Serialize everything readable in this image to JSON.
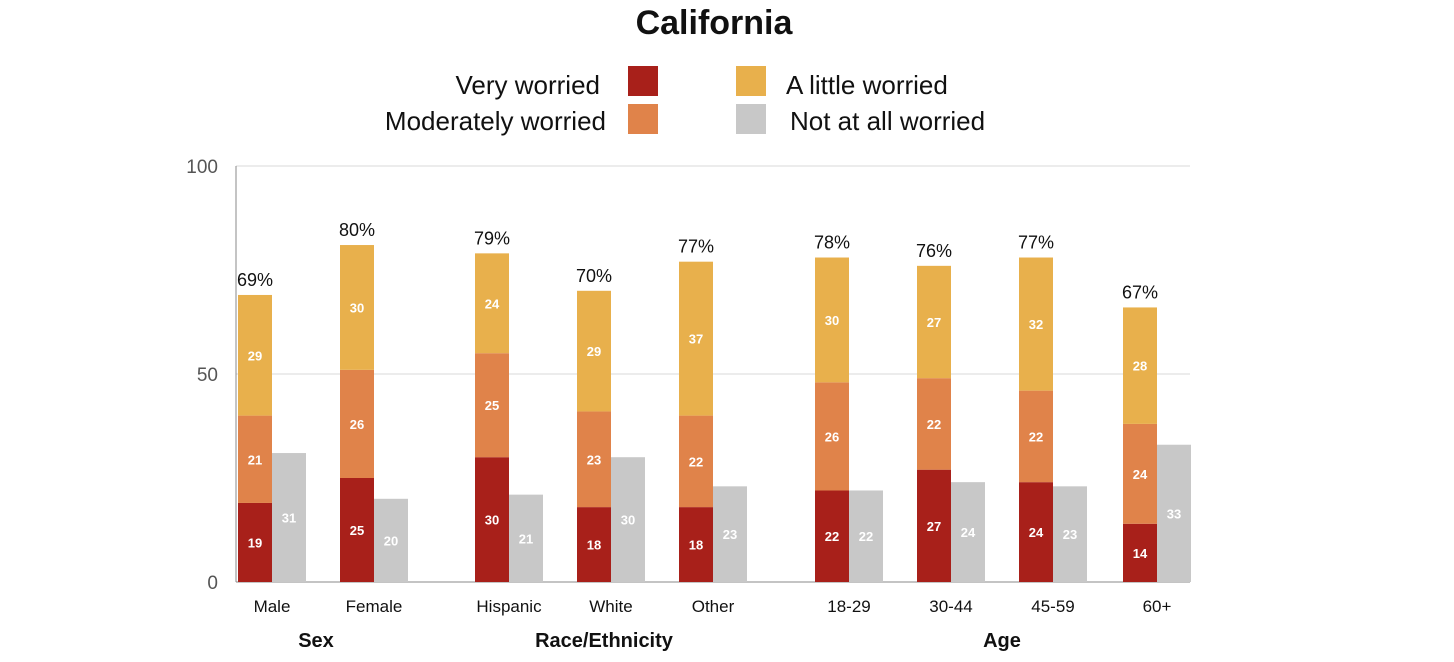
{
  "chart_data": {
    "type": "bar",
    "title": "California",
    "ylim": [
      0,
      100
    ],
    "yticks": [
      0,
      50,
      100
    ],
    "grid": true,
    "legend_placement": "top",
    "categories": [
      "Male",
      "Female",
      "Hispanic",
      "White",
      "Other",
      "18-29",
      "30-44",
      "45-59",
      "60+"
    ],
    "groups": [
      {
        "label": "Sex",
        "categories": [
          "Male",
          "Female"
        ]
      },
      {
        "label": "Race/Ethnicity",
        "categories": [
          "Hispanic",
          "White",
          "Other"
        ]
      },
      {
        "label": "Age",
        "categories": [
          "18-29",
          "30-44",
          "45-59",
          "60+"
        ]
      }
    ],
    "stacked_series": [
      {
        "name": "Very worried",
        "color": "#a8201a",
        "values": [
          19,
          25,
          30,
          18,
          18,
          22,
          27,
          24,
          14
        ]
      },
      {
        "name": "Moderately worried",
        "color": "#e0834a",
        "values": [
          21,
          26,
          25,
          23,
          22,
          26,
          22,
          22,
          24
        ]
      },
      {
        "name": "A little worried",
        "color": "#e8b04c",
        "values": [
          29,
          30,
          24,
          29,
          37,
          30,
          27,
          32,
          28
        ]
      }
    ],
    "separate_series": {
      "name": "Not at all worried",
      "color": "#c8c8c8",
      "values": [
        31,
        20,
        21,
        30,
        23,
        22,
        24,
        23,
        33
      ]
    },
    "totals": [
      "69%",
      "80%",
      "79%",
      "70%",
      "77%",
      "78%",
      "76%",
      "77%",
      "67%"
    ]
  }
}
